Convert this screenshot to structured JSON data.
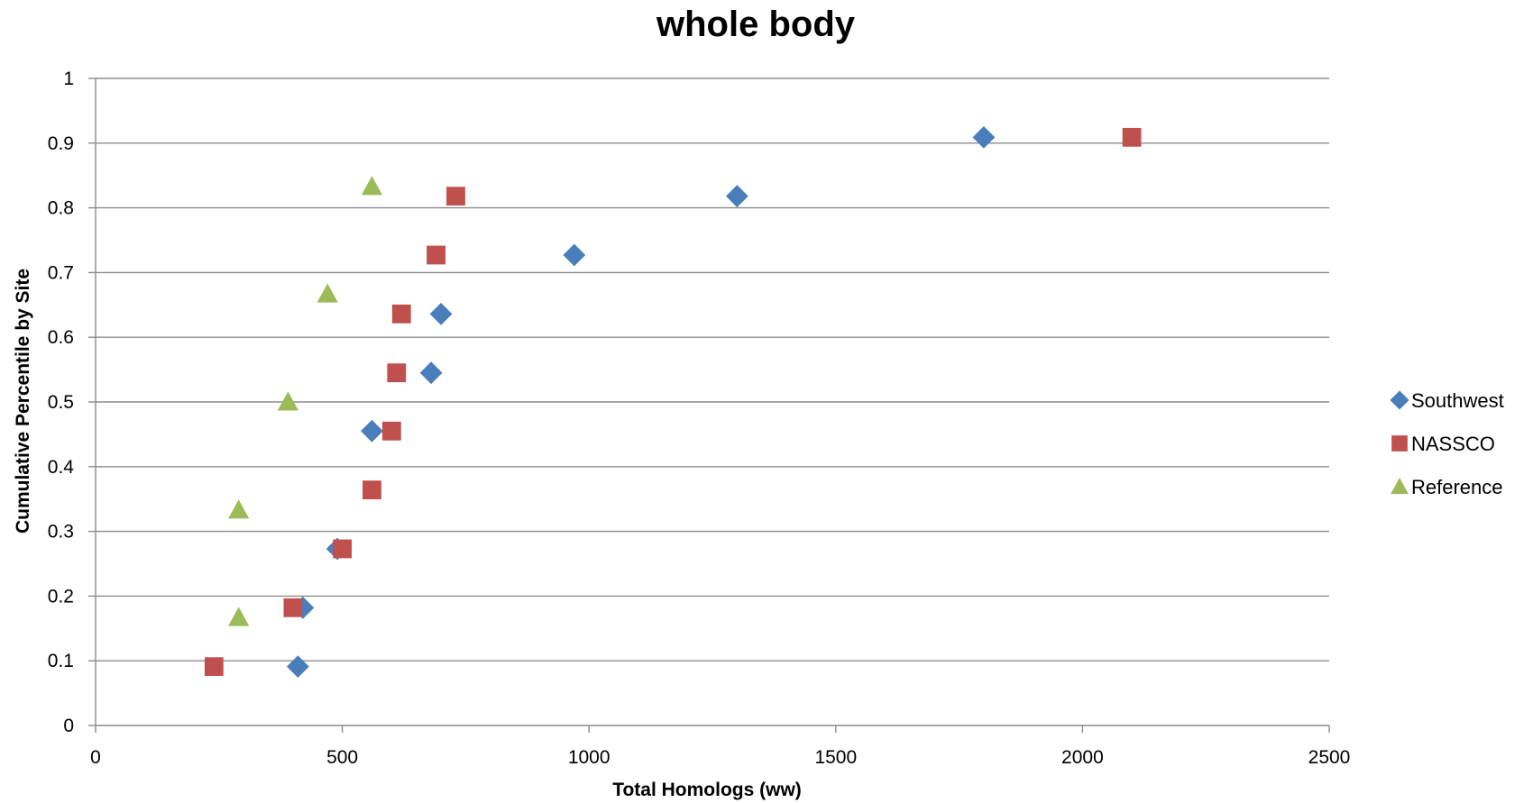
{
  "chart_data": {
    "type": "scatter",
    "title": "whole body",
    "xlabel": "Total Homologs (ww)",
    "ylabel": "Cumulative Percentile by Site",
    "xlim": [
      0,
      2500
    ],
    "ylim": [
      0,
      1
    ],
    "x_ticks": [
      "0",
      "500",
      "1000",
      "1500",
      "2000",
      "2500"
    ],
    "y_ticks": [
      "0",
      "0.1",
      "0.2",
      "0.3",
      "0.4",
      "0.5",
      "0.6",
      "0.7",
      "0.8",
      "0.9",
      "1"
    ],
    "grid": "horizontal",
    "legend_position": "right",
    "series": [
      {
        "name": "Southwest",
        "marker": "diamond",
        "color": "#4a7ebb",
        "points": [
          {
            "x": 410,
            "y": 0.091
          },
          {
            "x": 420,
            "y": 0.182
          },
          {
            "x": 490,
            "y": 0.273
          },
          {
            "x": 560,
            "y": 0.455
          },
          {
            "x": 680,
            "y": 0.545
          },
          {
            "x": 700,
            "y": 0.636
          },
          {
            "x": 970,
            "y": 0.727
          },
          {
            "x": 1300,
            "y": 0.818
          },
          {
            "x": 1800,
            "y": 0.909
          }
        ]
      },
      {
        "name": "NASSCO",
        "marker": "square",
        "color": "#c0504d",
        "points": [
          {
            "x": 240,
            "y": 0.091
          },
          {
            "x": 400,
            "y": 0.182
          },
          {
            "x": 500,
            "y": 0.273
          },
          {
            "x": 560,
            "y": 0.364
          },
          {
            "x": 600,
            "y": 0.455
          },
          {
            "x": 610,
            "y": 0.545
          },
          {
            "x": 620,
            "y": 0.636
          },
          {
            "x": 690,
            "y": 0.727
          },
          {
            "x": 730,
            "y": 0.818
          },
          {
            "x": 2100,
            "y": 0.909
          }
        ]
      },
      {
        "name": "Reference",
        "marker": "triangle",
        "color": "#9bbb59",
        "points": [
          {
            "x": 290,
            "y": 0.167
          },
          {
            "x": 290,
            "y": 0.333
          },
          {
            "x": 390,
            "y": 0.5
          },
          {
            "x": 470,
            "y": 0.667
          },
          {
            "x": 560,
            "y": 0.833
          }
        ]
      }
    ]
  }
}
